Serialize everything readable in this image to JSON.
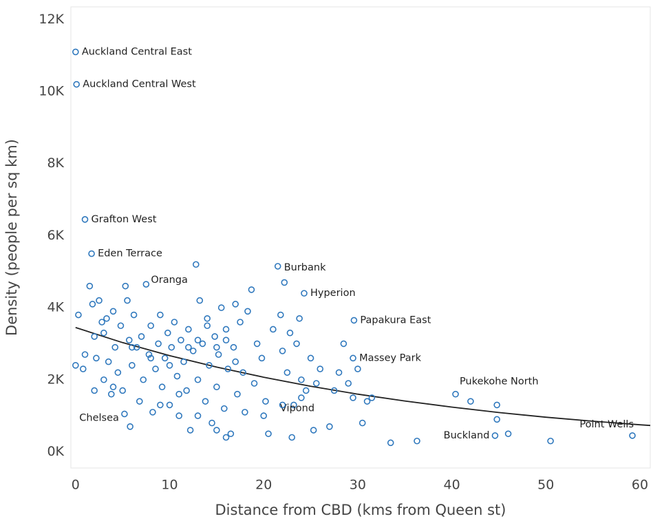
{
  "chart_data": {
    "type": "scatter",
    "x_label": "Distance from CBD (kms from Queen st)",
    "y_label": "Density (people per sq km)",
    "xlim": [
      -0.5,
      61.1
    ],
    "ylim": [
      -450,
      12350
    ],
    "xticks": [
      0,
      10,
      20,
      30,
      40,
      50,
      60
    ],
    "yticks": [
      {
        "value": 0,
        "label": "0K"
      },
      {
        "value": 2000,
        "label": "2K"
      },
      {
        "value": 4000,
        "label": "4K"
      },
      {
        "value": 6000,
        "label": "6K"
      },
      {
        "value": 8000,
        "label": "8K"
      },
      {
        "value": 10000,
        "label": "10K"
      },
      {
        "value": 12000,
        "label": "12K"
      }
    ],
    "grid": false,
    "series": [
      {
        "color": "#2f78bd",
        "x": [
          0,
          0.1,
          1,
          1.7,
          7.5,
          21.5,
          24.3,
          29.6,
          29.5,
          40.4,
          59.2,
          44.6,
          23.2,
          5.2,
          0,
          0.3,
          0.8,
          1,
          1.5,
          1.8,
          2,
          2.2,
          2.5,
          2.8,
          3,
          3.3,
          3.5,
          3.8,
          4,
          4.2,
          4.5,
          4.8,
          5,
          5.3,
          5.5,
          5.7,
          5.8,
          6,
          6.2,
          6.5,
          6.8,
          7,
          7.2,
          7.8,
          8,
          8.2,
          8.5,
          8.8,
          9,
          9.2,
          9.5,
          9.8,
          10,
          10.2,
          10.5,
          10.8,
          11,
          11.2,
          11.5,
          11.8,
          12,
          12.2,
          12.5,
          12.8,
          13,
          13.2,
          13.5,
          13.8,
          14,
          14.2,
          14.5,
          14.8,
          15,
          15.2,
          15.5,
          15.8,
          16,
          16.2,
          16.5,
          16.8,
          17,
          17.2,
          17.5,
          17.8,
          18,
          18.3,
          18.7,
          19,
          19.3,
          19.8,
          20.2,
          20.5,
          21,
          21.8,
          22,
          22.2,
          22.5,
          22.8,
          23,
          23.5,
          23.8,
          24,
          24.5,
          25,
          25.3,
          25.6,
          26,
          27,
          27.5,
          28,
          28.5,
          29,
          29.5,
          30,
          30.5,
          31,
          31.5,
          33.5,
          36.3,
          42,
          44.8,
          44.8,
          46,
          50.5,
          2,
          6,
          8,
          10,
          12,
          13,
          14,
          15,
          16,
          17,
          3,
          4,
          9,
          11,
          13,
          15,
          16,
          20,
          22,
          24
        ],
        "values": [
          11100,
          10200,
          6450,
          5500,
          4650,
          5150,
          4400,
          3650,
          2600,
          1600,
          450,
          450,
          1300,
          1050,
          2400,
          3800,
          2300,
          2700,
          4600,
          4100,
          3200,
          2600,
          4200,
          3600,
          2000,
          3700,
          2500,
          1600,
          3900,
          2900,
          2200,
          3500,
          1700,
          4600,
          4200,
          3100,
          700,
          2400,
          3800,
          2900,
          1400,
          3200,
          2000,
          2700,
          3500,
          1100,
          2300,
          3000,
          3800,
          1800,
          2600,
          3300,
          1300,
          2900,
          3600,
          2100,
          1000,
          3100,
          2500,
          1700,
          3400,
          600,
          2800,
          5200,
          2000,
          4200,
          3000,
          1400,
          3700,
          2400,
          800,
          3200,
          1800,
          2700,
          4000,
          1200,
          3400,
          2300,
          500,
          2900,
          4100,
          1600,
          3600,
          2200,
          1100,
          3900,
          4500,
          1900,
          3000,
          2600,
          1400,
          500,
          3400,
          3800,
          2800,
          4700,
          2200,
          3300,
          400,
          3000,
          3700,
          2000,
          1700,
          2600,
          600,
          1900,
          2300,
          700,
          1700,
          2200,
          3000,
          1900,
          1500,
          2300,
          800,
          1400,
          1500,
          250,
          300,
          1400,
          1300,
          900,
          500,
          300,
          1700,
          2900,
          2600,
          2400,
          2900,
          3100,
          3500,
          2900,
          3100,
          2500,
          3300,
          1800,
          1300,
          1600,
          1000,
          600,
          400,
          1000,
          1300,
          1500
        ],
        "labels": [
          "Auckland Central East",
          "Auckland Central West",
          "Grafton West",
          "Eden Terrace",
          "Oranga",
          "Burbank",
          "Hyperion",
          "Papakura East",
          "Massey Park",
          "Pukekohe North",
          "Point Wells",
          "Buckland",
          "Vipond",
          "Chelsea",
          null,
          null,
          null,
          null,
          null,
          null,
          null,
          null,
          null,
          null,
          null,
          null,
          null,
          null,
          null,
          null,
          null,
          null,
          null,
          null,
          null,
          null,
          null,
          null,
          null,
          null,
          null,
          null,
          null,
          null,
          null,
          null,
          null,
          null,
          null,
          null,
          null,
          null,
          null,
          null,
          null,
          null,
          null,
          null,
          null,
          null,
          null,
          null,
          null,
          null,
          null,
          null,
          null,
          null,
          null,
          null,
          null,
          null,
          null,
          null,
          null,
          null,
          null,
          null,
          null,
          null,
          null,
          null,
          null,
          null,
          null,
          null,
          null,
          null,
          null,
          null,
          null,
          null,
          null,
          null,
          null,
          null,
          null,
          null,
          null,
          null,
          null,
          null,
          null,
          null,
          null,
          null,
          null,
          null,
          null,
          null,
          null,
          null,
          null,
          null,
          null,
          null,
          null,
          null,
          null,
          null,
          null,
          null,
          null,
          null,
          null,
          null,
          null,
          null,
          null,
          null,
          null,
          null,
          null,
          null,
          null,
          null,
          null,
          null,
          null,
          null
        ]
      }
    ],
    "trendline": {
      "color": "#222222",
      "x": [
        0,
        5,
        10,
        15,
        20,
        25,
        30,
        35,
        40,
        45,
        50,
        55,
        60,
        61.1
      ],
      "values": [
        3450,
        3030,
        2670,
        2350,
        2070,
        1820,
        1600,
        1410,
        1240,
        1090,
        960,
        850,
        750,
        730
      ]
    }
  }
}
